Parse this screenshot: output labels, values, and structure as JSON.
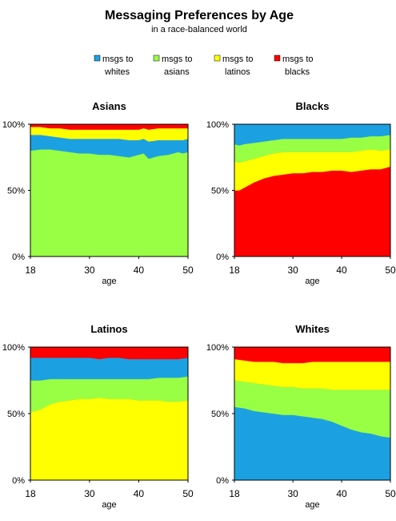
{
  "title": "Messaging Preferences by Age",
  "subtitle": "in a race-balanced world",
  "legend": [
    {
      "label_lines": [
        "msgs to",
        "whites"
      ],
      "color": "#1BA1E2"
    },
    {
      "label_lines": [
        "msgs to",
        "asians"
      ],
      "color": "#99FF44"
    },
    {
      "label_lines": [
        "msgs to",
        "latinos"
      ],
      "color": "#FFFF00"
    },
    {
      "label_lines": [
        "msgs to",
        "blacks"
      ],
      "color": "#FF0000"
    }
  ],
  "chart_data": [
    {
      "type": "area",
      "title": "Asians",
      "xlabel": "age",
      "ylabel": "",
      "xlim": [
        18,
        50
      ],
      "ylim": [
        0,
        100
      ],
      "xticks": [
        "18",
        "30",
        "40",
        "50"
      ],
      "yticks": [
        "0%",
        "50%",
        "100%"
      ],
      "stacked": true,
      "x": [
        18,
        20,
        22,
        24,
        26,
        28,
        30,
        32,
        34,
        36,
        38,
        40,
        41,
        42,
        44,
        46,
        48,
        49,
        50
      ],
      "series": [
        {
          "name": "msgs to asians",
          "color": "#99FF44",
          "values": [
            80,
            81,
            81,
            80,
            79,
            78,
            78,
            77,
            77,
            76,
            75,
            77,
            78,
            74,
            76,
            77,
            79,
            78,
            79
          ]
        },
        {
          "name": "msgs to whites",
          "color": "#1BA1E2",
          "values": [
            12,
            11,
            10,
            10,
            10,
            11,
            11,
            12,
            12,
            13,
            13,
            11,
            11,
            13,
            12,
            11,
            9,
            10,
            10
          ]
        },
        {
          "name": "msgs to latinos",
          "color": "#FFFF00",
          "values": [
            6,
            6,
            6,
            7,
            7,
            7,
            7,
            7,
            7,
            7,
            8,
            8,
            8,
            9,
            9,
            9,
            9,
            9,
            8
          ]
        },
        {
          "name": "msgs to blacks",
          "color": "#FF0000",
          "values": [
            2,
            2,
            3,
            3,
            4,
            4,
            4,
            4,
            4,
            4,
            4,
            4,
            3,
            4,
            3,
            3,
            3,
            3,
            3
          ]
        }
      ]
    },
    {
      "type": "area",
      "title": "Blacks",
      "xlabel": "age",
      "ylabel": "",
      "xlim": [
        18,
        50
      ],
      "ylim": [
        0,
        100
      ],
      "xticks": [
        "18",
        "30",
        "40",
        "50"
      ],
      "yticks": [
        "0%",
        "50%",
        "100%"
      ],
      "stacked": true,
      "x": [
        18,
        19,
        20,
        22,
        24,
        26,
        28,
        30,
        32,
        34,
        36,
        38,
        40,
        42,
        44,
        46,
        48,
        50
      ],
      "series": [
        {
          "name": "msgs to blacks",
          "color": "#FF0000",
          "values": [
            50,
            50,
            52,
            56,
            59,
            61,
            62,
            63,
            63,
            64,
            64,
            65,
            65,
            64,
            65,
            66,
            66,
            68
          ]
        },
        {
          "name": "msgs to latinos",
          "color": "#FFFF00",
          "values": [
            22,
            21,
            20,
            18,
            17,
            17,
            17,
            16,
            16,
            15,
            15,
            14,
            14,
            15,
            15,
            15,
            14,
            13
          ]
        },
        {
          "name": "msgs to asians",
          "color": "#99FF44",
          "values": [
            13,
            13,
            13,
            12,
            11,
            10,
            10,
            10,
            10,
            10,
            10,
            10,
            10,
            11,
            10,
            10,
            11,
            11
          ]
        },
        {
          "name": "msgs to whites",
          "color": "#1BA1E2",
          "values": [
            15,
            16,
            15,
            14,
            13,
            12,
            11,
            11,
            11,
            11,
            11,
            11,
            11,
            10,
            10,
            9,
            9,
            8
          ]
        }
      ]
    },
    {
      "type": "area",
      "title": "Latinos",
      "xlabel": "age",
      "ylabel": "",
      "xlim": [
        18,
        50
      ],
      "ylim": [
        0,
        100
      ],
      "xticks": [
        "18",
        "30",
        "40",
        "50"
      ],
      "yticks": [
        "0%",
        "50%",
        "100%"
      ],
      "stacked": true,
      "x": [
        18,
        19,
        20,
        22,
        24,
        26,
        28,
        30,
        32,
        34,
        36,
        38,
        40,
        42,
        44,
        46,
        48,
        50
      ],
      "series": [
        {
          "name": "msgs to latinos",
          "color": "#FFFF00",
          "values": [
            51,
            52,
            53,
            57,
            59,
            60,
            61,
            61,
            62,
            61,
            61,
            61,
            60,
            60,
            60,
            59,
            59,
            60
          ]
        },
        {
          "name": "msgs to asians",
          "color": "#99FF44",
          "values": [
            24,
            23,
            22,
            19,
            17,
            16,
            15,
            15,
            14,
            15,
            15,
            15,
            16,
            16,
            17,
            18,
            18,
            18
          ]
        },
        {
          "name": "msgs to whites",
          "color": "#1BA1E2",
          "values": [
            17,
            17,
            17,
            16,
            16,
            16,
            16,
            16,
            15,
            16,
            16,
            15,
            15,
            15,
            14,
            14,
            14,
            14
          ]
        },
        {
          "name": "msgs to blacks",
          "color": "#FF0000",
          "values": [
            8,
            8,
            8,
            8,
            8,
            8,
            8,
            8,
            9,
            8,
            8,
            9,
            9,
            9,
            9,
            9,
            9,
            8
          ]
        }
      ]
    },
    {
      "type": "area",
      "title": "Whites",
      "xlabel": "age",
      "ylabel": "",
      "xlim": [
        18,
        50
      ],
      "ylim": [
        0,
        100
      ],
      "xticks": [
        "18",
        "30",
        "40",
        "50"
      ],
      "yticks": [
        "0%",
        "50%",
        "100%"
      ],
      "stacked": true,
      "x": [
        18,
        20,
        22,
        24,
        26,
        28,
        30,
        32,
        34,
        36,
        38,
        40,
        42,
        44,
        46,
        48,
        50
      ],
      "series": [
        {
          "name": "msgs to whites",
          "color": "#1BA1E2",
          "values": [
            55,
            54,
            52,
            51,
            50,
            49,
            49,
            48,
            47,
            46,
            44,
            41,
            38,
            36,
            35,
            33,
            32
          ]
        },
        {
          "name": "msgs to asians",
          "color": "#99FF44",
          "values": [
            20,
            20,
            21,
            21,
            21,
            21,
            21,
            21,
            22,
            23,
            24,
            27,
            30,
            32,
            33,
            35,
            36
          ]
        },
        {
          "name": "msgs to latinos",
          "color": "#FFFF00",
          "values": [
            16,
            16,
            16,
            17,
            18,
            18,
            18,
            19,
            20,
            20,
            21,
            21,
            21,
            21,
            21,
            21,
            21
          ]
        },
        {
          "name": "msgs to blacks",
          "color": "#FF0000",
          "values": [
            9,
            10,
            11,
            11,
            11,
            12,
            12,
            12,
            11,
            11,
            11,
            11,
            11,
            11,
            11,
            11,
            11
          ]
        }
      ]
    }
  ]
}
